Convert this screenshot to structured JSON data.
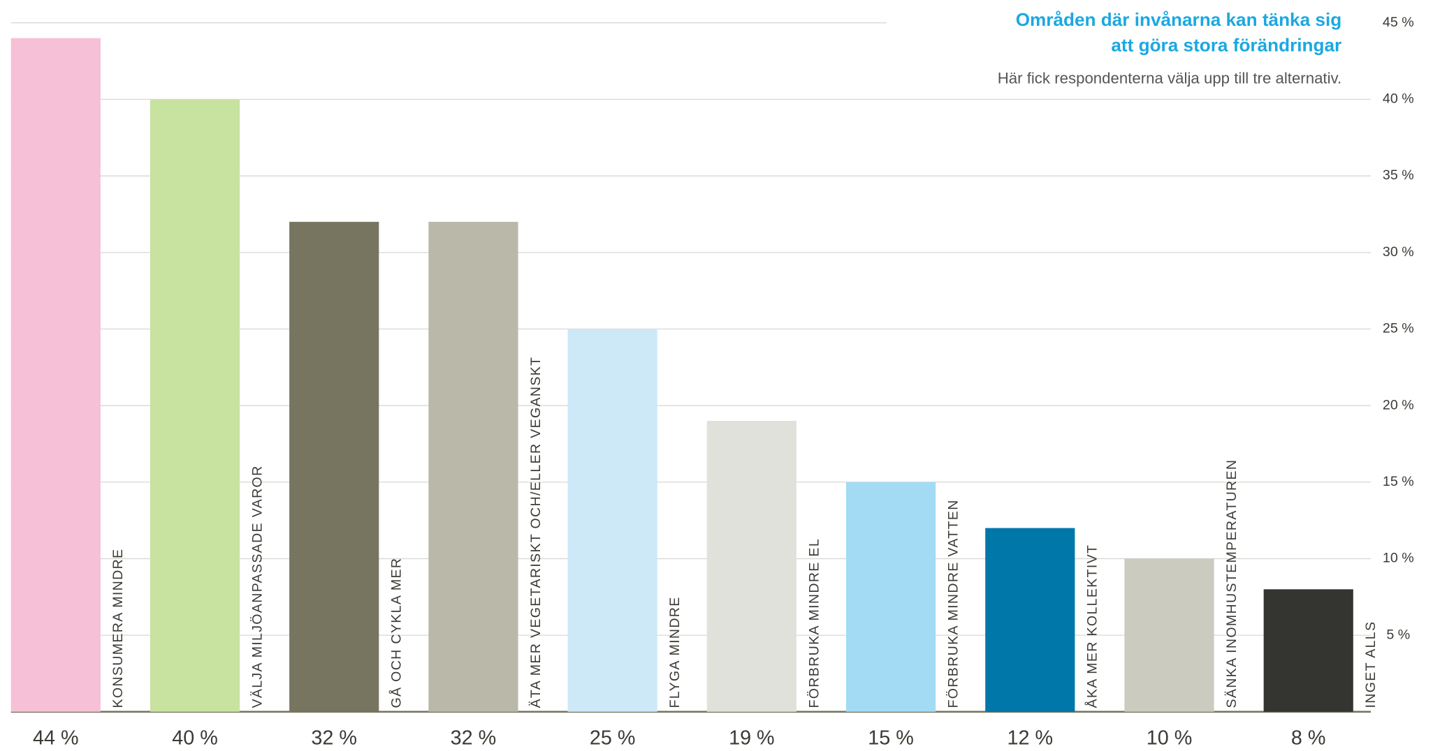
{
  "chart_data": {
    "type": "bar",
    "title": [
      "Områden där invånarna kan tänka sig",
      "att göra stora förändringar"
    ],
    "subtitle": "Här fick respondenterna välja upp till tre alternativ.",
    "categories": [
      "KONSUMERA MINDRE",
      "VÄLJA MILJÖANPASSADE VAROR",
      "GÅ OCH CYKLA MER",
      "ÄTA MER VEGETARISKT OCH/ELLER VEGANSKT",
      "FLYGA MINDRE",
      "FÖRBRUKA MINDRE EL",
      "FÖRBRUKA MINDRE VATTEN",
      "ÅKA MER KOLLEKTIVT",
      "SÄNKA INOMHUSTEMPERATUREN",
      "INGET ALLS"
    ],
    "values": [
      44,
      40,
      32,
      32,
      25,
      19,
      15,
      12,
      10,
      8
    ],
    "value_labels": [
      "44 %",
      "40 %",
      "32 %",
      "32 %",
      "25 %",
      "19 %",
      "15 %",
      "12 %",
      "10 %",
      "8 %"
    ],
    "colors": [
      "#f6c0d7",
      "#c8e2a0",
      "#77755f",
      "#b9b8a9",
      "#cde8f7",
      "#e1e1dc",
      "#a3dbf5",
      "#0077a9",
      "#cbcbc0",
      "#343430"
    ],
    "ylim": [
      0,
      45
    ],
    "yticks": [
      {
        "value": 5,
        "label": "5 %"
      },
      {
        "value": 10,
        "label": "10 %"
      },
      {
        "value": 15,
        "label": "15 %"
      },
      {
        "value": 20,
        "label": "20 %"
      },
      {
        "value": 25,
        "label": "25 %"
      },
      {
        "value": 30,
        "label": "30 %"
      },
      {
        "value": 35,
        "label": "35 %"
      },
      {
        "value": 40,
        "label": "40 %"
      },
      {
        "value": 45,
        "label": "45 %"
      }
    ],
    "grid": true
  }
}
